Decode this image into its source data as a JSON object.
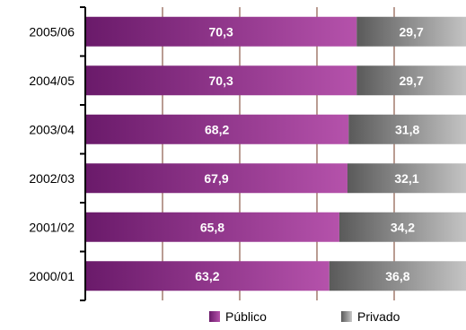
{
  "chart_data": {
    "type": "bar",
    "orientation": "horizontal",
    "stacked": true,
    "categories": [
      "2005/06",
      "2004/05",
      "2003/04",
      "2002/03",
      "2001/02",
      "2000/01"
    ],
    "series": [
      {
        "name": "Público",
        "values": [
          70.3,
          70.3,
          68.2,
          67.9,
          65.8,
          63.2
        ],
        "labels": [
          "70,3",
          "70,3",
          "68,2",
          "67,9",
          "65,8",
          "63,2"
        ],
        "color": "#9a2e8f"
      },
      {
        "name": "Privado",
        "values": [
          29.7,
          29.7,
          31.8,
          32.1,
          34.2,
          36.8
        ],
        "labels": [
          "29,7",
          "29,7",
          "31,8",
          "32,1",
          "34,2",
          "36,8"
        ],
        "color": "#808080"
      }
    ],
    "xlim": [
      0,
      100
    ],
    "grid": "vertical",
    "legend_position": "bottom"
  },
  "colors": {
    "publico_dark": "#6a1a6a",
    "publico_light": "#b552ab",
    "privado_dark": "#5a5a5a",
    "privado_light": "#c4c4c4",
    "grid": "#8b5a4a"
  }
}
